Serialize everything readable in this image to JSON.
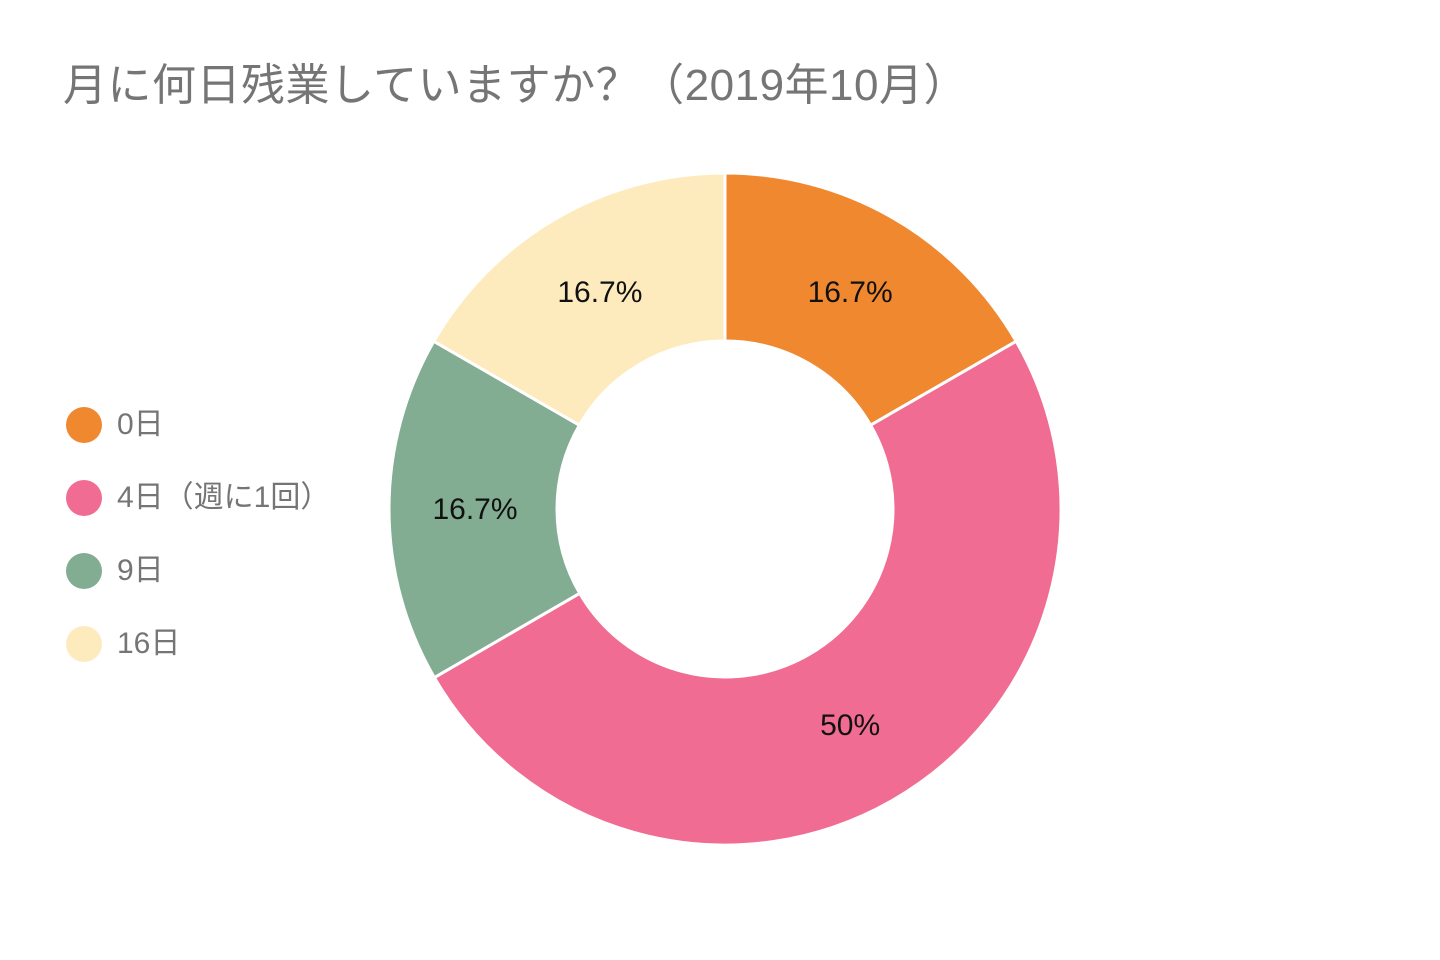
{
  "page": {
    "background": "#ffffff"
  },
  "chart_data": {
    "type": "pie",
    "subtype": "donut",
    "title": "月に何日残業していますか？（2019年10月）",
    "categories": [
      "0日",
      "4日（週に1回）",
      "9日",
      "16日"
    ],
    "values": [
      16.7,
      50,
      16.7,
      16.7
    ],
    "value_labels": [
      "16.7%",
      "50%",
      "16.7%",
      "16.7%"
    ],
    "colors": [
      "#F0882F",
      "#F06C92",
      "#82AD93",
      "#FDEBBD"
    ],
    "start_angle_deg": 0,
    "direction": "clockwise",
    "inner_radius_ratio": 0.5,
    "legend_position": "left",
    "grid": false,
    "title_color": "#757575",
    "legend_text_color": "#757575",
    "slice_label_color": "#111111",
    "slice_border_color": "#ffffff"
  }
}
